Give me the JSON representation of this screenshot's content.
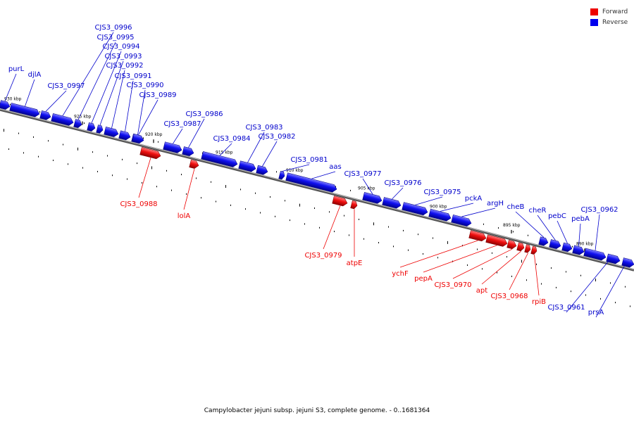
{
  "legend": {
    "items": [
      {
        "label": "Forward",
        "color": "#ee0000"
      },
      {
        "label": "Reverse",
        "color": "#0000ee"
      }
    ]
  },
  "caption": "Campylobacter jejuni subsp. jejuni S3, complete genome. - 0..1681364",
  "ticks": [
    {
      "label": "930 kbp"
    },
    {
      "label": "925 kbp"
    },
    {
      "label": "920 kbp"
    },
    {
      "label": "915 kbp"
    },
    {
      "label": "910 kbp"
    },
    {
      "label": "905 kbp"
    },
    {
      "label": "900 kbp"
    },
    {
      "label": "895 kbp"
    },
    {
      "label": "890 kbp"
    }
  ],
  "genes": [
    {
      "name": "purL",
      "strand": "reverse"
    },
    {
      "name": "djlA",
      "strand": "reverse"
    },
    {
      "name": "CJS3_0997",
      "strand": "reverse"
    },
    {
      "name": "CJS3_0996",
      "strand": "reverse"
    },
    {
      "name": "CJS3_0995",
      "strand": "reverse"
    },
    {
      "name": "CJS3_0994",
      "strand": "reverse"
    },
    {
      "name": "CJS3_0993",
      "strand": "reverse"
    },
    {
      "name": "CJS3_0992",
      "strand": "reverse"
    },
    {
      "name": "CJS3_0991",
      "strand": "reverse"
    },
    {
      "name": "CJS3_0990",
      "strand": "reverse"
    },
    {
      "name": "CJS3_0989",
      "strand": "reverse"
    },
    {
      "name": "CJS3_0988",
      "strand": "forward"
    },
    {
      "name": "lolA",
      "strand": "forward"
    },
    {
      "name": "CJS3_0987",
      "strand": "reverse"
    },
    {
      "name": "CJS3_0986",
      "strand": "reverse"
    },
    {
      "name": "CJS3_0984",
      "strand": "reverse"
    },
    {
      "name": "CJS3_0983",
      "strand": "reverse"
    },
    {
      "name": "CJS3_0982",
      "strand": "reverse"
    },
    {
      "name": "CJS3_0981",
      "strand": "reverse"
    },
    {
      "name": "aas",
      "strand": "reverse"
    },
    {
      "name": "CJS3_0979",
      "strand": "forward"
    },
    {
      "name": "atpE",
      "strand": "forward"
    },
    {
      "name": "CJS3_0977",
      "strand": "reverse"
    },
    {
      "name": "CJS3_0976",
      "strand": "reverse"
    },
    {
      "name": "CJS3_0975",
      "strand": "reverse"
    },
    {
      "name": "pckA",
      "strand": "reverse"
    },
    {
      "name": "argH",
      "strand": "reverse"
    },
    {
      "name": "ychF",
      "strand": "forward"
    },
    {
      "name": "pepA",
      "strand": "forward"
    },
    {
      "name": "CJS3_0970",
      "strand": "forward"
    },
    {
      "name": "apt",
      "strand": "forward"
    },
    {
      "name": "CJS3_0968",
      "strand": "forward"
    },
    {
      "name": "rpiB",
      "strand": "forward"
    },
    {
      "name": "cheB",
      "strand": "reverse"
    },
    {
      "name": "cheR",
      "strand": "reverse"
    },
    {
      "name": "pebC",
      "strand": "reverse"
    },
    {
      "name": "pebA",
      "strand": "reverse"
    },
    {
      "name": "CJS3_0962",
      "strand": "reverse"
    },
    {
      "name": "CJS3_0961",
      "strand": "reverse"
    },
    {
      "name": "prsA",
      "strand": "reverse"
    }
  ]
}
